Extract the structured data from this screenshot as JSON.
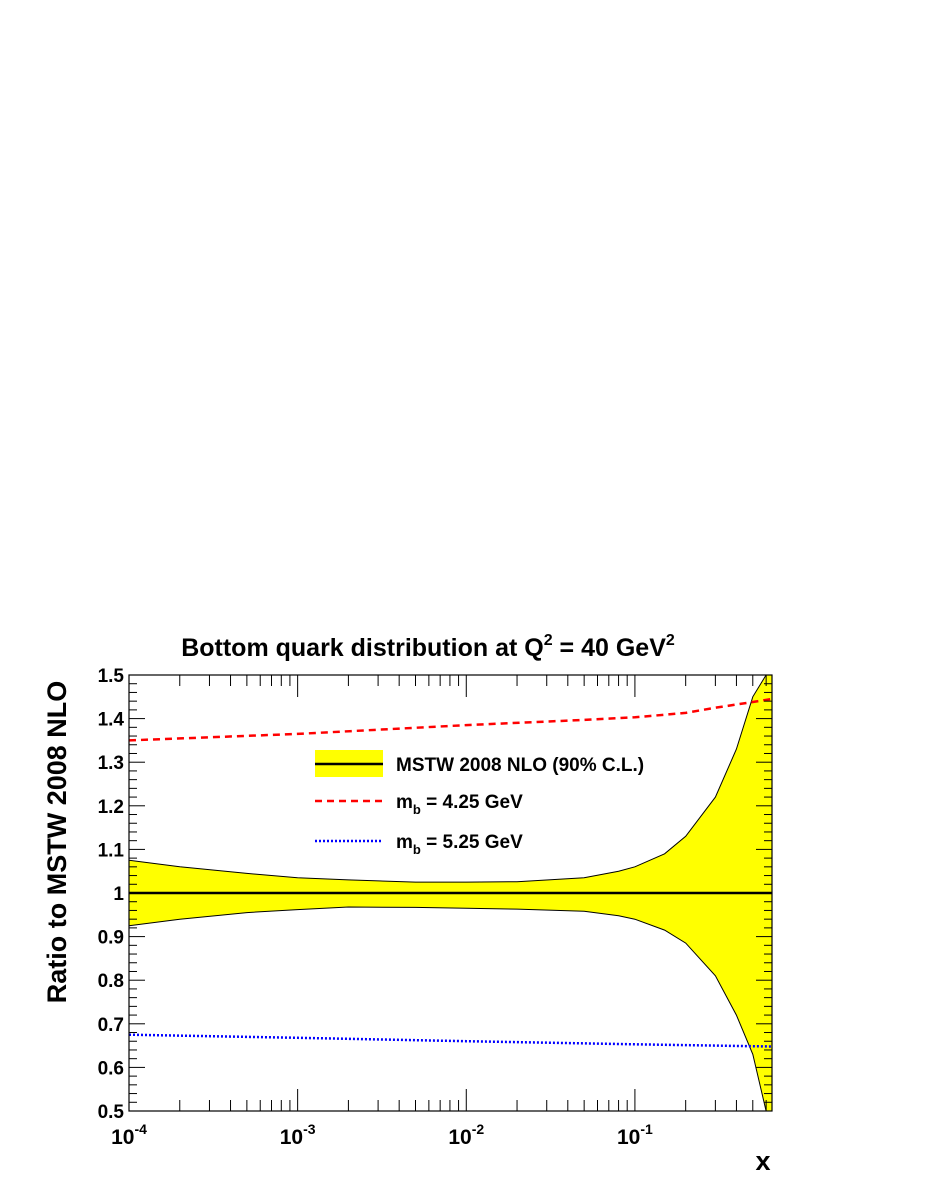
{
  "chart_data": {
    "type": "line",
    "title": {
      "text": "Bottom quark distribution at Q",
      "sup1": "2",
      "mid": " = 40 GeV",
      "sup2": "2"
    },
    "xlabel": "x",
    "ylabel": "Ratio to MSTW 2008 NLO",
    "x_scale": "log",
    "xlim": [
      0.0001,
      0.65
    ],
    "ylim": [
      0.5,
      1.5
    ],
    "grid": false,
    "legend_position": "upper-center",
    "x_ticks": [
      {
        "value": 0.0001,
        "base": "10",
        "exp": "-4"
      },
      {
        "value": 0.001,
        "base": "10",
        "exp": "-3"
      },
      {
        "value": 0.01,
        "base": "10",
        "exp": "-2"
      },
      {
        "value": 0.1,
        "base": "10",
        "exp": "-1"
      }
    ],
    "y_ticks": [
      "0.5",
      "0.6",
      "0.7",
      "0.8",
      "0.9",
      "1",
      "1.1",
      "1.2",
      "1.3",
      "1.4",
      "1.5"
    ],
    "band": {
      "name": "MSTW 2008 NLO (90% C.L.)",
      "color": "#ffff00",
      "x": [
        0.0001,
        0.0002,
        0.0005,
        0.001,
        0.002,
        0.005,
        0.01,
        0.02,
        0.05,
        0.08,
        0.1,
        0.15,
        0.2,
        0.3,
        0.4,
        0.5,
        0.6,
        0.65
      ],
      "upper": [
        1.075,
        1.06,
        1.045,
        1.035,
        1.03,
        1.025,
        1.025,
        1.026,
        1.035,
        1.05,
        1.06,
        1.09,
        1.13,
        1.22,
        1.33,
        1.45,
        1.5,
        1.5
      ],
      "lower": [
        0.925,
        0.94,
        0.955,
        0.962,
        0.968,
        0.967,
        0.965,
        0.963,
        0.958,
        0.948,
        0.94,
        0.915,
        0.885,
        0.81,
        0.72,
        0.63,
        0.5,
        0.5
      ]
    },
    "series": [
      {
        "name": "MSTW 2008 NLO (90% C.L.)",
        "color": "#000000",
        "style": "solid",
        "x": [
          0.0001,
          0.65
        ],
        "y": [
          1.0,
          1.0
        ]
      },
      {
        "name_main": "m",
        "name_sub": "b",
        "name_rest": " = 4.25 GeV",
        "color": "#ff0000",
        "style": "dashed",
        "x": [
          0.0001,
          0.001,
          0.01,
          0.05,
          0.1,
          0.2,
          0.3,
          0.5,
          0.65
        ],
        "y": [
          1.35,
          1.365,
          1.385,
          1.397,
          1.403,
          1.413,
          1.425,
          1.438,
          1.445
        ]
      },
      {
        "name_main": "m",
        "name_sub": "b",
        "name_rest": " = 5.25 GeV",
        "color": "#0000ff",
        "style": "dotted",
        "x": [
          0.0001,
          0.001,
          0.01,
          0.1,
          0.3,
          0.65
        ],
        "y": [
          0.675,
          0.668,
          0.66,
          0.653,
          0.65,
          0.648
        ]
      }
    ]
  }
}
